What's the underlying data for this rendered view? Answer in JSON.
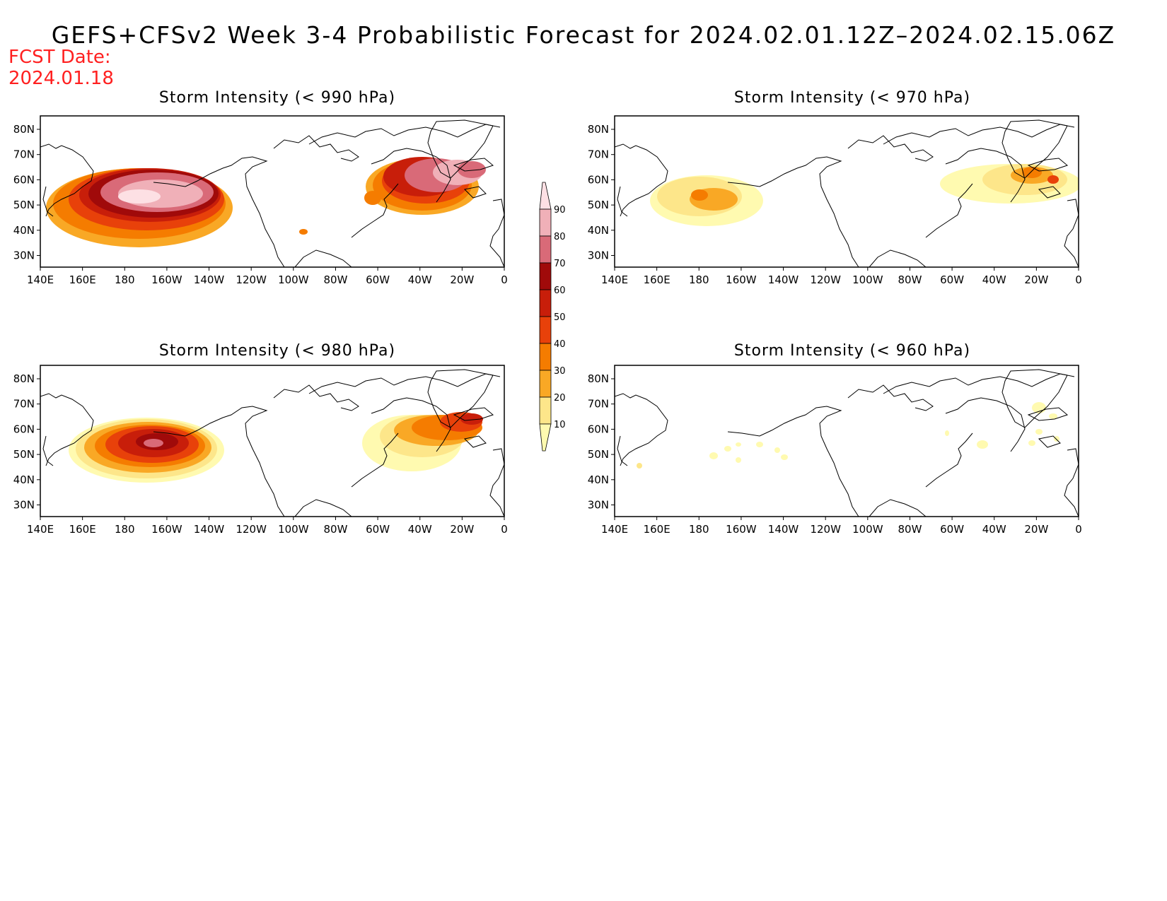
{
  "title": "GEFS+CFSv2 Week 3-4 Probabilistic Forecast for 2024.02.01.12Z–2024.02.15.06Z",
  "fcst_label": "FCST Date:",
  "fcst_date": "2024.01.18",
  "lon_ticks": [
    "140E",
    "160E",
    "180",
    "160W",
    "140W",
    "120W",
    "100W",
    "80W",
    "60W",
    "40W",
    "20W",
    "0"
  ],
  "lat_ticks": [
    "80N",
    "70N",
    "60N",
    "50N",
    "40N",
    "30N"
  ],
  "colorbar": {
    "levels": [
      "10",
      "20",
      "30",
      "40",
      "50",
      "60",
      "70",
      "80",
      "90"
    ],
    "colors": [
      "#fffab0",
      "#fde68a",
      "#f9a825",
      "#f57c00",
      "#e8410a",
      "#c81e0a",
      "#a00a0a",
      "#d96a78",
      "#f0b0b8",
      "#fde0e4"
    ]
  },
  "panels": [
    {
      "id": "p990",
      "title": "Storm Intensity (< 990 hPa)"
    },
    {
      "id": "p970",
      "title": "Storm Intensity (< 970 hPa)"
    },
    {
      "id": "p980",
      "title": "Storm Intensity (< 980 hPa)"
    },
    {
      "id": "p960",
      "title": "Storm Intensity (< 960 hPa)"
    }
  ]
}
